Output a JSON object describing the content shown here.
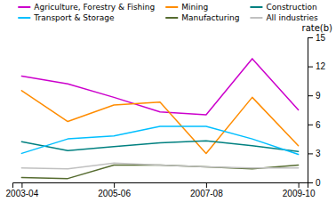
{
  "chart_data": {
    "type": "line",
    "y_label": "rate(b)",
    "categories": [
      "2003-04",
      null,
      "2005-06",
      null,
      "2007-08",
      null,
      "2009-10"
    ],
    "series": [
      {
        "name": "Agriculture, Forestry & Fishing",
        "color": "#cc00cc",
        "values": [
          11.0,
          10.2,
          8.8,
          7.3,
          7.0,
          12.8,
          7.5
        ]
      },
      {
        "name": "Mining",
        "color": "#ff8c00",
        "values": [
          9.5,
          6.3,
          8.0,
          8.3,
          3.0,
          8.8,
          3.8
        ]
      },
      {
        "name": "Construction",
        "color": "#008080",
        "values": [
          4.2,
          3.3,
          3.7,
          4.1,
          4.3,
          3.8,
          3.2
        ]
      },
      {
        "name": "Transport & Storage",
        "color": "#00bfff",
        "values": [
          3.0,
          4.5,
          4.8,
          5.8,
          5.8,
          4.5,
          2.9
        ]
      },
      {
        "name": "Manufacturing",
        "color": "#556b2f",
        "values": [
          0.5,
          0.4,
          1.8,
          1.8,
          1.6,
          1.4,
          1.8
        ]
      },
      {
        "name": "All industries",
        "color": "#c0c0c0",
        "values": [
          1.5,
          1.4,
          2.0,
          1.8,
          1.6,
          1.5,
          1.5
        ]
      }
    ],
    "ylim": [
      0,
      15
    ],
    "yticks": [
      0,
      3,
      6,
      9,
      12,
      15
    ],
    "grid": false,
    "legend": "top"
  }
}
